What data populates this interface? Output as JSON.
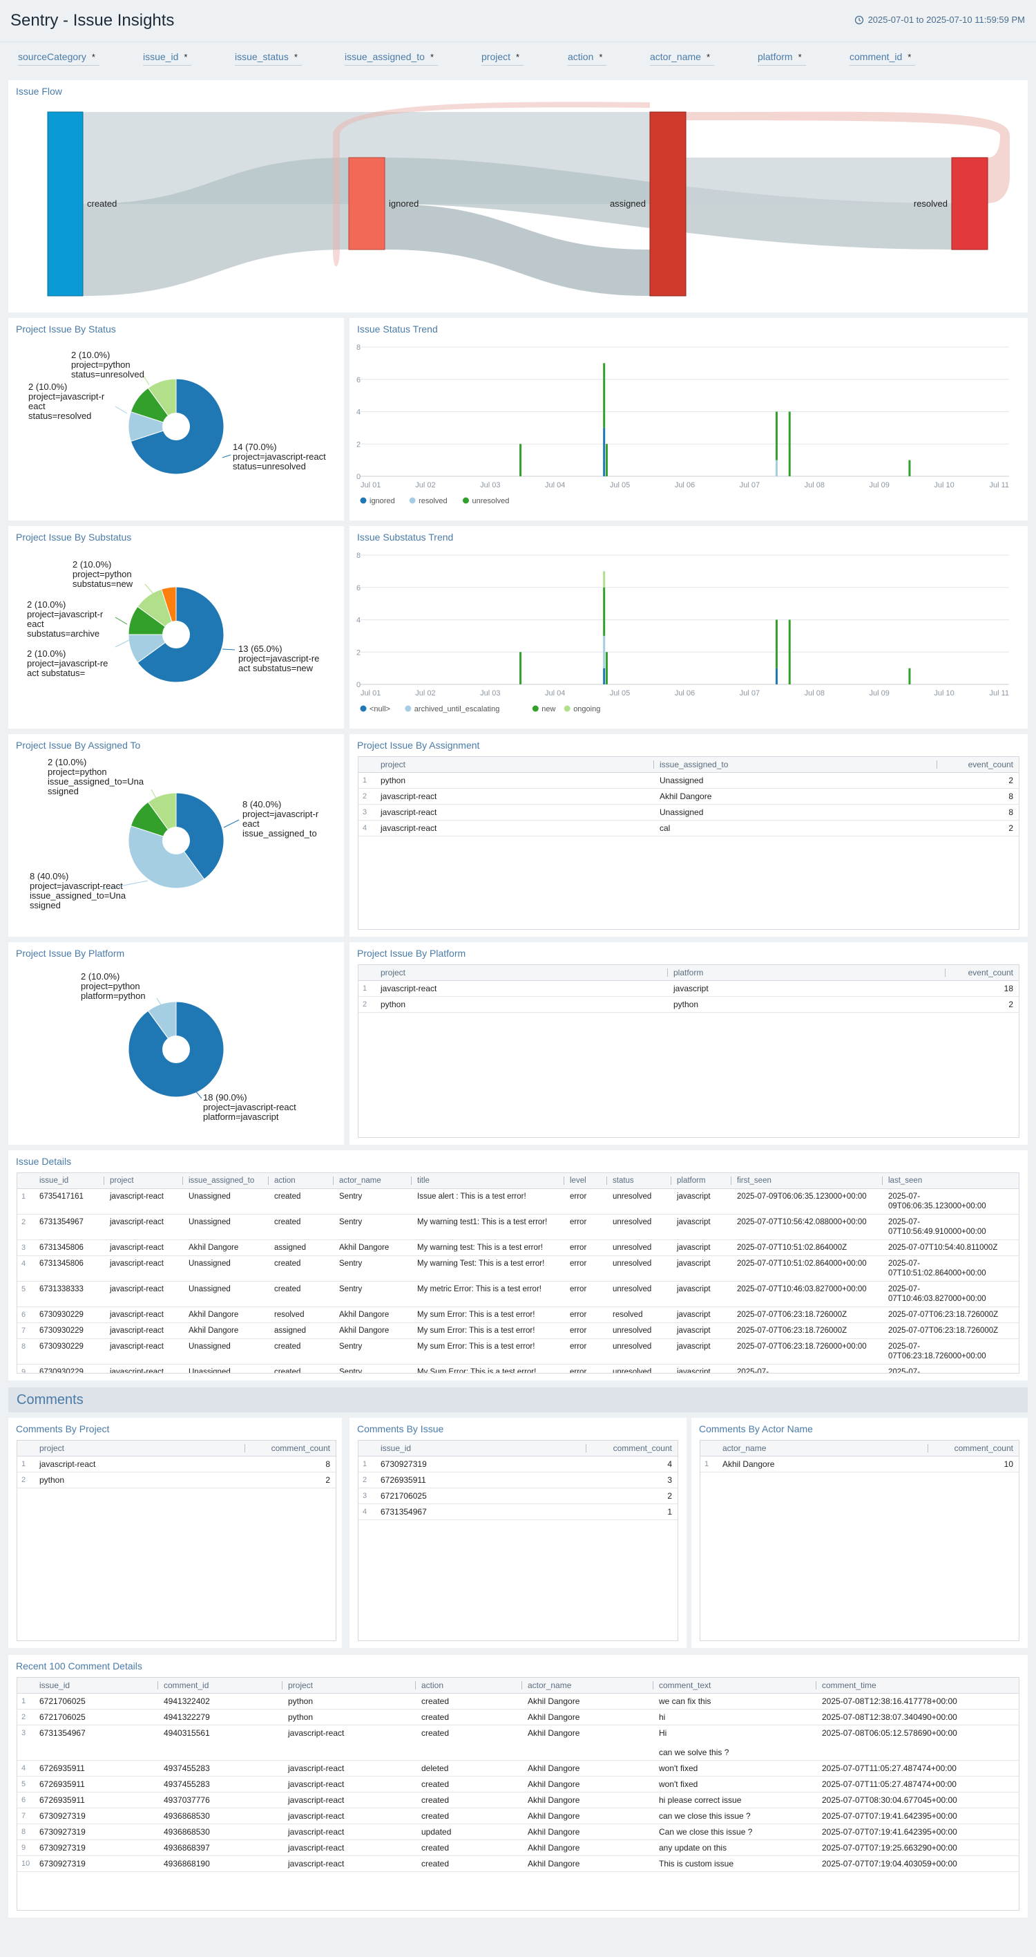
{
  "header": {
    "title": "Sentry - Issue Insights",
    "time_range": "2025-07-01 to 2025-07-10 11:59:59 PM",
    "clock_icon": "clock-icon"
  },
  "filters": [
    {
      "label": "sourceCategory",
      "value": "*"
    },
    {
      "label": "issue_id",
      "value": "*"
    },
    {
      "label": "issue_status",
      "value": "*"
    },
    {
      "label": "issue_assigned_to",
      "value": "*"
    },
    {
      "label": "project",
      "value": "*"
    },
    {
      "label": "action",
      "value": "*"
    },
    {
      "label": "actor_name",
      "value": "*"
    },
    {
      "label": "platform",
      "value": "*"
    },
    {
      "label": "comment_id",
      "value": "*"
    }
  ],
  "issue_flow": {
    "title": "Issue Flow",
    "nodes": [
      {
        "name": "created",
        "color": "#0a9bd6"
      },
      {
        "name": "ignored",
        "color": "#f26a57"
      },
      {
        "name": "assigned",
        "color": "#d03a2e"
      },
      {
        "name": "resolved",
        "color": "#e23a3a"
      }
    ]
  },
  "status_pie": {
    "title": "Project Issue By Status",
    "slices": [
      {
        "value": 14,
        "pct": "70.0%",
        "lines": [
          "14 (70.0%)",
          "project=javascript-react",
          "status=unresolved"
        ],
        "color": "#1f77b4"
      },
      {
        "value": 2,
        "pct": "10.0%",
        "lines": [
          "2 (10.0%)",
          "project=javascript-r",
          "eact",
          "status=resolved"
        ],
        "color": "#a6cee3"
      },
      {
        "value": 2,
        "pct": "10.0%",
        "lines": [
          "",
          "",
          ""
        ],
        "color": "#33a02c"
      },
      {
        "value": 2,
        "pct": "10.0%",
        "lines": [
          "2 (10.0%)",
          "project=python",
          "status=unresolved"
        ],
        "color": "#b2df8a"
      }
    ]
  },
  "status_trend": {
    "title": "Issue Status Trend",
    "y_ticks": [
      "0",
      "2",
      "4",
      "6",
      "8"
    ],
    "x_ticks": [
      "Jul 01",
      "Jul 02",
      "Jul 03",
      "Jul 04",
      "Jul 05",
      "Jul 06",
      "Jul 07",
      "Jul 08",
      "Jul 09",
      "Jul 10",
      "Jul 11"
    ],
    "legend": [
      {
        "name": "ignored",
        "color": "#1f77b4"
      },
      {
        "name": "resolved",
        "color": "#a6cee3"
      },
      {
        "name": "unresolved",
        "color": "#33a02c"
      }
    ]
  },
  "substatus_pie": {
    "title": "Project Issue By Substatus",
    "slices": [
      {
        "value": 13,
        "pct": "65.0%",
        "lines": [
          "13 (65.0%)",
          "project=javascript-re",
          "act substatus=new"
        ],
        "color": "#1f77b4"
      },
      {
        "value": 2,
        "pct": "10.0%",
        "lines": [
          "2 (10.0%)",
          "project=javascript-re",
          "act substatus="
        ],
        "color": "#a6cee3"
      },
      {
        "value": 2,
        "pct": "10.0%",
        "lines": [
          "2 (10.0%)",
          "project=javascript-r",
          "eact",
          "substatus=archive"
        ],
        "color": "#33a02c"
      },
      {
        "value": 2,
        "pct": "10.0%",
        "lines": [
          "2 (10.0%)",
          "project=python",
          "substatus=new"
        ],
        "color": "#b2df8a"
      },
      {
        "value": 1,
        "pct": "5.0%",
        "lines": [
          "",
          "",
          ""
        ],
        "color": "#ff7f0e"
      }
    ]
  },
  "substatus_trend": {
    "title": "Issue Substatus Trend",
    "y_ticks": [
      "0",
      "2",
      "4",
      "6",
      "8"
    ],
    "x_ticks": [
      "Jul 01",
      "Jul 02",
      "Jul 03",
      "Jul 04",
      "Jul 05",
      "Jul 06",
      "Jul 07",
      "Jul 08",
      "Jul 09",
      "Jul 10",
      "Jul 11"
    ],
    "legend": [
      {
        "name": "<null>",
        "color": "#1f77b4"
      },
      {
        "name": "archived_until_escalating",
        "color": "#a6cee3"
      },
      {
        "name": "new",
        "color": "#33a02c"
      },
      {
        "name": "ongoing",
        "color": "#b2df8a"
      }
    ]
  },
  "assigned_pie": {
    "title": "Project Issue By Assigned To",
    "slices": [
      {
        "value": 8,
        "pct": "40.0%",
        "lines": [
          "8 (40.0%)",
          "project=javascript-r",
          "eact",
          "issue_assigned_to"
        ],
        "color": "#1f77b4"
      },
      {
        "value": 8,
        "pct": "40.0%",
        "lines": [
          "8 (40.0%)",
          "project=javascript-react",
          "issue_assigned_to=Una",
          "ssigned"
        ],
        "color": "#a6cee3"
      },
      {
        "value": 2,
        "pct": "10.0%",
        "lines": [
          "",
          "",
          ""
        ],
        "color": "#33a02c"
      },
      {
        "value": 2,
        "pct": "10.0%",
        "lines": [
          "2 (10.0%)",
          "project=python",
          "issue_assigned_to=Una",
          "ssigned"
        ],
        "color": "#b2df8a"
      }
    ]
  },
  "platform_pie": {
    "title": "Project Issue By Platform",
    "slices": [
      {
        "value": 18,
        "pct": "90.0%",
        "lines": [
          "18 (90.0%)",
          "project=javascript-react",
          "platform=javascript"
        ],
        "color": "#1f77b4"
      },
      {
        "value": 2,
        "pct": "10.0%",
        "lines": [
          "2 (10.0%)",
          "project=python",
          "platform=python"
        ],
        "color": "#a6cee3"
      }
    ]
  },
  "assignment_table": {
    "title": "Project Issue By Assignment",
    "columns": [
      "project",
      "issue_assigned_to",
      "event_count"
    ],
    "rows": [
      [
        "1",
        "python",
        "Unassigned",
        "2"
      ],
      [
        "2",
        "javascript-react",
        "Akhil Dangore",
        "8"
      ],
      [
        "3",
        "javascript-react",
        "Unassigned",
        "8"
      ],
      [
        "4",
        "javascript-react",
        "cal",
        "2"
      ]
    ]
  },
  "platform_table": {
    "title": "Project Issue By Platform",
    "columns": [
      "project",
      "platform",
      "event_count"
    ],
    "rows": [
      [
        "1",
        "javascript-react",
        "javascript",
        "18"
      ],
      [
        "2",
        "python",
        "python",
        "2"
      ]
    ]
  },
  "issue_details": {
    "title": "Issue Details",
    "columns": [
      "issue_id",
      "project",
      "issue_assigned_to",
      "action",
      "actor_name",
      "title",
      "level",
      "status",
      "platform",
      "first_seen",
      "last_seen"
    ],
    "rows": [
      [
        "1",
        "6735417161",
        "javascript-react",
        "Unassigned",
        "created",
        "Sentry",
        "Issue alert : This is a test error!",
        "error",
        "unresolved",
        "javascript",
        "2025-07-09T06:06:35.123000+00:00",
        "2025-07-09T06:06:35.123000+00:00"
      ],
      [
        "2",
        "6731354967",
        "javascript-react",
        "Unassigned",
        "created",
        "Sentry",
        "My warning test1: This is a test error!",
        "error",
        "unresolved",
        "javascript",
        "2025-07-07T10:56:42.088000+00:00",
        "2025-07-07T10:56:49.910000+00:00"
      ],
      [
        "3",
        "6731345806",
        "javascript-react",
        "Akhil Dangore",
        "assigned",
        "Akhil Dangore",
        "My warning test: This is a test error!",
        "error",
        "unresolved",
        "javascript",
        "2025-07-07T10:51:02.864000Z",
        "2025-07-07T10:54:40.811000Z"
      ],
      [
        "4",
        "6731345806",
        "javascript-react",
        "Unassigned",
        "created",
        "Sentry",
        "My warning Test: This is a test error!",
        "error",
        "unresolved",
        "javascript",
        "2025-07-07T10:51:02.864000+00:00",
        "2025-07-07T10:51:02.864000+00:00"
      ],
      [
        "5",
        "6731338333",
        "javascript-react",
        "Unassigned",
        "created",
        "Sentry",
        "My metric Error: This is a test error!",
        "error",
        "unresolved",
        "javascript",
        "2025-07-07T10:46:03.827000+00:00",
        "2025-07-07T10:46:03.827000+00:00"
      ],
      [
        "6",
        "6730930229",
        "javascript-react",
        "Akhil Dangore",
        "resolved",
        "Akhil Dangore",
        "My sum Error: This is a test error!",
        "error",
        "resolved",
        "javascript",
        "2025-07-07T06:23:18.726000Z",
        "2025-07-07T06:23:18.726000Z"
      ],
      [
        "7",
        "6730930229",
        "javascript-react",
        "Akhil Dangore",
        "assigned",
        "Akhil Dangore",
        "My sum Error: This is a test error!",
        "error",
        "unresolved",
        "javascript",
        "2025-07-07T06:23:18.726000Z",
        "2025-07-07T06:23:18.726000Z"
      ],
      [
        "8",
        "6730930229",
        "javascript-react",
        "Unassigned",
        "created",
        "Sentry",
        "My sum Error: This is a test error!",
        "error",
        "unresolved",
        "javascript",
        "2025-07-07T06:23:18.726000+00:00",
        "2025-07-07T06:23:18.726000+00:00"
      ],
      [
        "9",
        "6730930229",
        "javascript-react",
        "Unassigned",
        "created",
        "Sentry",
        "My Sum Error: This is a test error!",
        "error",
        "unresolved",
        "javascript",
        "2025-07-",
        "2025-07-"
      ]
    ]
  },
  "comments_section": {
    "title": "Comments"
  },
  "comments_by_project": {
    "title": "Comments By Project",
    "columns": [
      "project",
      "comment_count"
    ],
    "rows": [
      [
        "1",
        "javascript-react",
        "8"
      ],
      [
        "2",
        "python",
        "2"
      ]
    ]
  },
  "comments_by_issue": {
    "title": "Comments By Issue",
    "columns": [
      "issue_id",
      "comment_count"
    ],
    "rows": [
      [
        "1",
        "6730927319",
        "4"
      ],
      [
        "2",
        "6726935911",
        "3"
      ],
      [
        "3",
        "6721706025",
        "2"
      ],
      [
        "4",
        "6731354967",
        "1"
      ]
    ]
  },
  "comments_by_actor": {
    "title": "Comments By Actor Name",
    "columns": [
      "actor_name",
      "comment_count"
    ],
    "rows": [
      [
        "1",
        "Akhil Dangore",
        "10"
      ]
    ]
  },
  "comment_details": {
    "title": "Recent 100 Comment Details",
    "columns": [
      "issue_id",
      "comment_id",
      "project",
      "action",
      "actor_name",
      "comment_text",
      "comment_time"
    ],
    "rows": [
      [
        "1",
        "6721706025",
        "4941322402",
        "python",
        "created",
        "Akhil Dangore",
        "we can fix this",
        "2025-07-08T12:38:16.417778+00:00"
      ],
      [
        "2",
        "6721706025",
        "4941322279",
        "python",
        "created",
        "Akhil Dangore",
        "hi",
        "2025-07-08T12:38:07.340490+00:00"
      ],
      [
        "3",
        "6731354967",
        "4940315561",
        "javascript-react",
        "created",
        "Akhil Dangore",
        "Hi\n\ncan we solve this ?",
        "2025-07-08T06:05:12.578690+00:00"
      ],
      [
        "4",
        "6726935911",
        "4937455283",
        "javascript-react",
        "deleted",
        "Akhil Dangore",
        "won't fixed",
        "2025-07-07T11:05:27.487474+00:00"
      ],
      [
        "5",
        "6726935911",
        "4937455283",
        "javascript-react",
        "created",
        "Akhil Dangore",
        "won't fixed",
        "2025-07-07T11:05:27.487474+00:00"
      ],
      [
        "6",
        "6726935911",
        "4937037776",
        "javascript-react",
        "created",
        "Akhil Dangore",
        "hi please correct issue",
        "2025-07-07T08:30:04.677045+00:00"
      ],
      [
        "7",
        "6730927319",
        "4936868530",
        "javascript-react",
        "created",
        "Akhil Dangore",
        "can we close this issue ?",
        "2025-07-07T07:19:41.642395+00:00"
      ],
      [
        "8",
        "6730927319",
        "4936868530",
        "javascript-react",
        "updated",
        "Akhil Dangore",
        "Can we close this issue ?",
        "2025-07-07T07:19:41.642395+00:00"
      ],
      [
        "9",
        "6730927319",
        "4936868397",
        "javascript-react",
        "created",
        "Akhil Dangore",
        "any update on this",
        "2025-07-07T07:19:25.663290+00:00"
      ],
      [
        "10",
        "6730927319",
        "4936868190",
        "javascript-react",
        "created",
        "Akhil Dangore",
        "This is custom issue",
        "2025-07-07T07:19:04.403059+00:00"
      ]
    ]
  }
}
